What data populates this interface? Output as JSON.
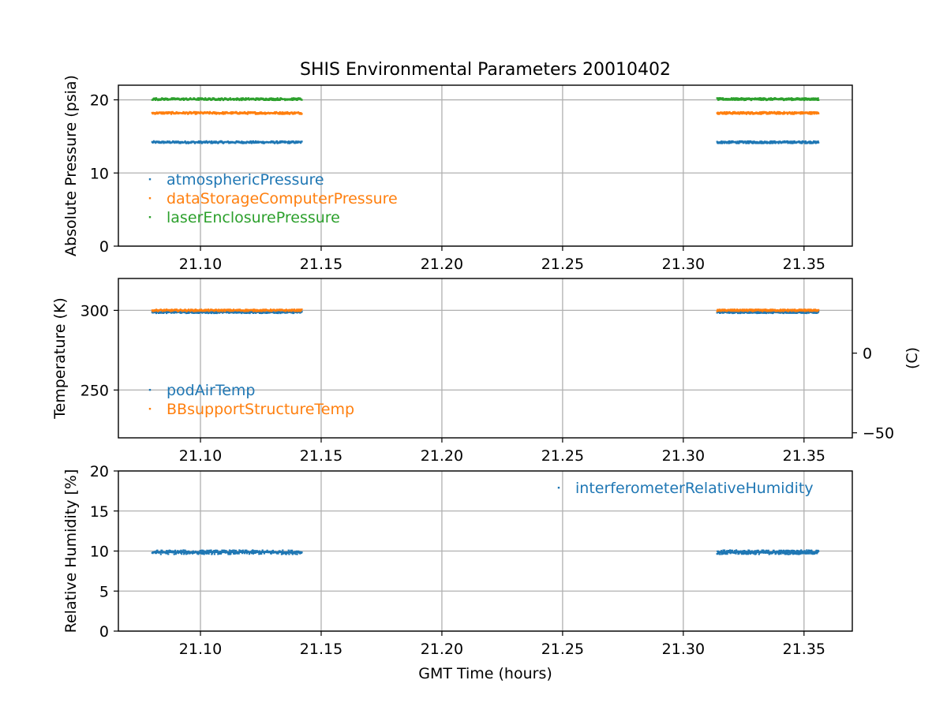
{
  "chart_data": {
    "type": "scatter",
    "title": "SHIS Environmental Parameters 20010402",
    "xlabel": "GMT Time (hours)",
    "xlim": [
      21.066,
      21.37
    ],
    "xticks": [
      21.1,
      21.15,
      21.2,
      21.25,
      21.3,
      21.35
    ],
    "xtick_labels": [
      "21.10",
      "21.15",
      "21.20",
      "21.25",
      "21.30",
      "21.35"
    ],
    "grid": true,
    "segments": [
      [
        21.08,
        21.142
      ],
      [
        21.314,
        21.356
      ]
    ],
    "panels": [
      {
        "ylabel": "Absolute Pressure (psia)",
        "ylim": [
          0,
          22
        ],
        "yticks": [
          0,
          10,
          20
        ],
        "ytick_labels": [
          "0",
          "10",
          "20"
        ],
        "legend_loc": "lower-left",
        "series": [
          {
            "name": "atmosphericPressure",
            "color": "#1f77b4",
            "value": 14.2,
            "noise": 0.15
          },
          {
            "name": "dataStorageComputerPressure",
            "color": "#ff7f0e",
            "value": 18.2,
            "noise": 0.15
          },
          {
            "name": "laserEnclosurePressure",
            "color": "#2ca02c",
            "value": 20.1,
            "noise": 0.15
          }
        ]
      },
      {
        "ylabel": "Temperature (K)",
        "ylim": [
          220,
          320
        ],
        "yticks": [
          250,
          300
        ],
        "ytick_labels": [
          "250",
          "300"
        ],
        "right_axis": {
          "label": "(C)",
          "ticks_c": [
            0,
            -50
          ],
          "tick_labels": [
            "0",
            "−50"
          ]
        },
        "legend_loc": "lower-left",
        "series": [
          {
            "name": "podAirTemp",
            "color": "#1f77b4",
            "value": 298.8,
            "noise": 0.6
          },
          {
            "name": "BBsupportStructureTemp",
            "color": "#ff7f0e",
            "value": 300.0,
            "noise": 0.6
          }
        ]
      },
      {
        "ylabel": "Relative Humidity [%]",
        "ylim": [
          0,
          20
        ],
        "yticks": [
          0,
          5,
          10,
          15,
          20
        ],
        "ytick_labels": [
          "0",
          "5",
          "10",
          "15",
          "20"
        ],
        "legend_loc": "upper-right",
        "series": [
          {
            "name": "interferometerRelativeHumidity",
            "color": "#1f77b4",
            "value": 9.85,
            "noise": 0.25
          }
        ]
      }
    ]
  }
}
